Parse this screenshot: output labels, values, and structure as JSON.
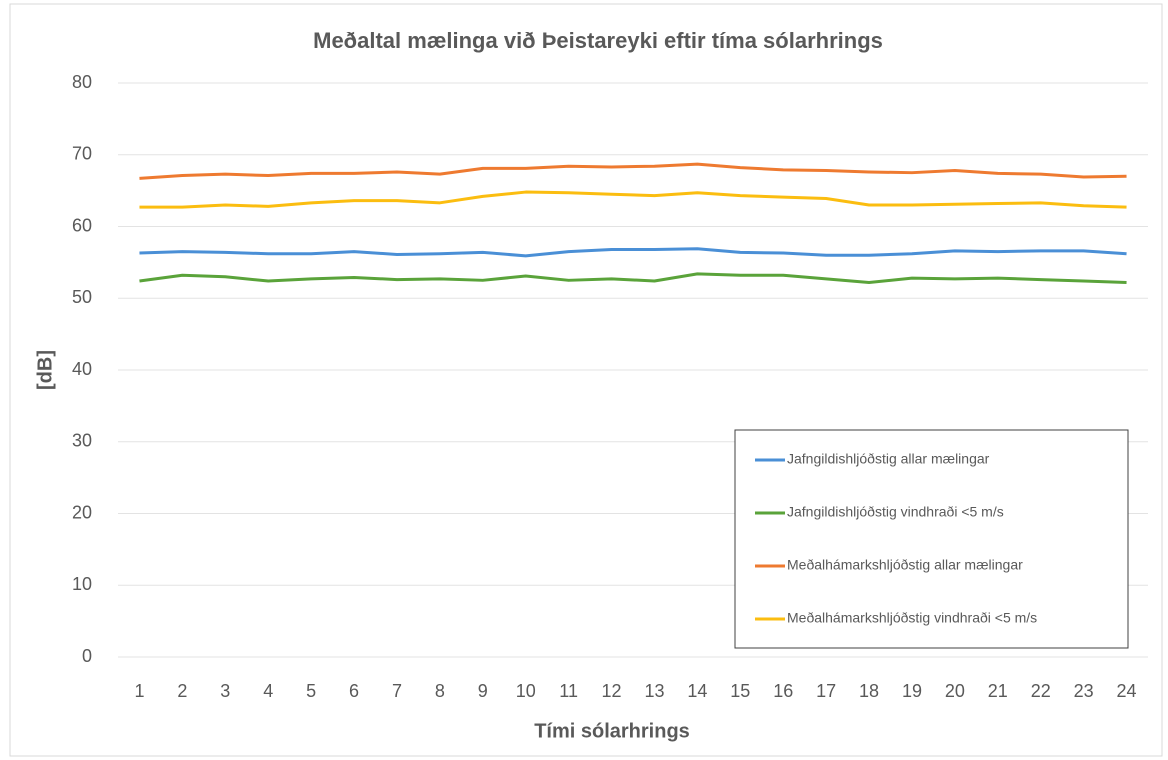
{
  "chart_data": {
    "type": "line",
    "title": "Meðaltal mælinga við Þeistareyki eftir tíma sólarhrings",
    "x_label": "Tími  sólarhrings",
    "y_label": "[dB]",
    "categories": [
      "1",
      "2",
      "3",
      "4",
      "5",
      "6",
      "7",
      "8",
      "9",
      "10",
      "11",
      "12",
      "13",
      "14",
      "15",
      "16",
      "17",
      "18",
      "19",
      "20",
      "21",
      "22",
      "23",
      "24"
    ],
    "ylim": [
      0,
      80
    ],
    "yticks": [
      0,
      10,
      20,
      30,
      40,
      50,
      60,
      70,
      80
    ],
    "grid": true,
    "legend": "lower right",
    "series": [
      {
        "name": "Jafngildishljóðstig allar mælingar",
        "color": "#4a8fd6",
        "values": [
          56.3,
          56.5,
          56.4,
          56.2,
          56.2,
          56.5,
          56.1,
          56.2,
          56.4,
          55.9,
          56.5,
          56.8,
          56.8,
          56.9,
          56.4,
          56.3,
          56.0,
          56.0,
          56.2,
          56.6,
          56.5,
          56.6,
          56.6,
          56.2
        ]
      },
      {
        "name": "Jafngildishljóðstig vindhraði <5 m/s",
        "color": "#5aa33a",
        "values": [
          52.4,
          53.2,
          53.0,
          52.4,
          52.7,
          52.9,
          52.6,
          52.7,
          52.5,
          53.1,
          52.5,
          52.7,
          52.4,
          53.4,
          53.2,
          53.2,
          52.7,
          52.2,
          52.8,
          52.7,
          52.8,
          52.6,
          52.4,
          52.2
        ]
      },
      {
        "name": "Meðalhámarkshljóðstig allar mælingar",
        "color": "#ee7a30",
        "values": [
          66.7,
          67.1,
          67.3,
          67.1,
          67.4,
          67.4,
          67.6,
          67.3,
          68.1,
          68.1,
          68.4,
          68.3,
          68.4,
          68.7,
          68.2,
          67.9,
          67.8,
          67.6,
          67.5,
          67.8,
          67.4,
          67.3,
          66.9,
          67.0
        ]
      },
      {
        "name": "Meðalhámarkshljóðstig vindhraði <5 m/s",
        "color": "#fbbd10",
        "values": [
          62.7,
          62.7,
          63.0,
          62.8,
          63.3,
          63.6,
          63.6,
          63.3,
          64.2,
          64.8,
          64.7,
          64.5,
          64.3,
          64.7,
          64.3,
          64.1,
          63.9,
          63.0,
          63.0,
          63.1,
          63.2,
          63.3,
          62.9,
          62.7
        ]
      }
    ]
  }
}
